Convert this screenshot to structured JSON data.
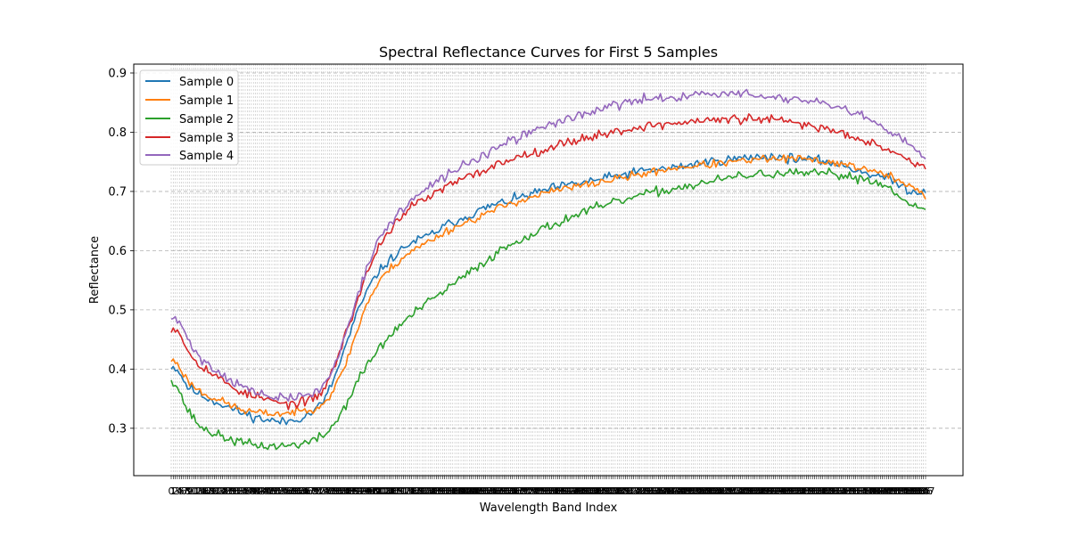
{
  "chart_data": {
    "type": "line",
    "title": "Spectral Reflectance Curves for First 5 Samples",
    "xlabel": "Wavelength Band Index",
    "ylabel": "Reflectance",
    "x_range": [
      0,
      367
    ],
    "ylim": [
      0.22,
      0.915
    ],
    "y_ticks": [
      "0.3",
      "0.4",
      "0.5",
      "0.6",
      "0.7",
      "0.8",
      "0.9"
    ],
    "y_tick_values": [
      0.3,
      0.4,
      0.5,
      0.6,
      0.7,
      0.8,
      0.9
    ],
    "x_tick_labels_dense": true,
    "x_tick_count": 368,
    "grid": true,
    "grid_style": "dashed",
    "legend_position": "upper-left",
    "series": [
      {
        "name": "Sample 0",
        "color": "#1f77b4",
        "noise": 0.007,
        "seed": 11,
        "anchors": [
          [
            0,
            0.405
          ],
          [
            3,
            0.4
          ],
          [
            8,
            0.37
          ],
          [
            15,
            0.355
          ],
          [
            25,
            0.34
          ],
          [
            35,
            0.325
          ],
          [
            45,
            0.315
          ],
          [
            55,
            0.31
          ],
          [
            65,
            0.32
          ],
          [
            70,
            0.33
          ],
          [
            75,
            0.35
          ],
          [
            80,
            0.39
          ],
          [
            85,
            0.44
          ],
          [
            90,
            0.49
          ],
          [
            95,
            0.53
          ],
          [
            100,
            0.56
          ],
          [
            105,
            0.58
          ],
          [
            115,
            0.61
          ],
          [
            125,
            0.625
          ],
          [
            135,
            0.645
          ],
          [
            145,
            0.66
          ],
          [
            155,
            0.675
          ],
          [
            165,
            0.685
          ],
          [
            175,
            0.695
          ],
          [
            185,
            0.705
          ],
          [
            200,
            0.715
          ],
          [
            215,
            0.725
          ],
          [
            230,
            0.735
          ],
          [
            245,
            0.74
          ],
          [
            260,
            0.75
          ],
          [
            275,
            0.755
          ],
          [
            290,
            0.76
          ],
          [
            305,
            0.755
          ],
          [
            320,
            0.75
          ],
          [
            330,
            0.74
          ],
          [
            340,
            0.73
          ],
          [
            350,
            0.72
          ],
          [
            360,
            0.7
          ],
          [
            367,
            0.7
          ]
        ]
      },
      {
        "name": "Sample 1",
        "color": "#ff7f0e",
        "noise": 0.006,
        "seed": 23,
        "anchors": [
          [
            0,
            0.415
          ],
          [
            3,
            0.41
          ],
          [
            8,
            0.38
          ],
          [
            15,
            0.36
          ],
          [
            25,
            0.345
          ],
          [
            35,
            0.33
          ],
          [
            45,
            0.325
          ],
          [
            55,
            0.325
          ],
          [
            65,
            0.33
          ],
          [
            70,
            0.335
          ],
          [
            75,
            0.345
          ],
          [
            80,
            0.37
          ],
          [
            85,
            0.41
          ],
          [
            90,
            0.46
          ],
          [
            95,
            0.51
          ],
          [
            100,
            0.54
          ],
          [
            105,
            0.565
          ],
          [
            115,
            0.595
          ],
          [
            125,
            0.615
          ],
          [
            135,
            0.635
          ],
          [
            145,
            0.65
          ],
          [
            155,
            0.665
          ],
          [
            165,
            0.68
          ],
          [
            175,
            0.69
          ],
          [
            185,
            0.7
          ],
          [
            200,
            0.71
          ],
          [
            215,
            0.72
          ],
          [
            230,
            0.73
          ],
          [
            245,
            0.74
          ],
          [
            260,
            0.745
          ],
          [
            275,
            0.75
          ],
          [
            290,
            0.755
          ],
          [
            305,
            0.755
          ],
          [
            320,
            0.75
          ],
          [
            330,
            0.745
          ],
          [
            340,
            0.735
          ],
          [
            350,
            0.725
          ],
          [
            360,
            0.71
          ],
          [
            367,
            0.69
          ]
        ]
      },
      {
        "name": "Sample 2",
        "color": "#2ca02c",
        "noise": 0.007,
        "seed": 37,
        "anchors": [
          [
            0,
            0.385
          ],
          [
            3,
            0.37
          ],
          [
            8,
            0.33
          ],
          [
            15,
            0.3
          ],
          [
            25,
            0.285
          ],
          [
            35,
            0.275
          ],
          [
            45,
            0.27
          ],
          [
            55,
            0.27
          ],
          [
            65,
            0.275
          ],
          [
            70,
            0.28
          ],
          [
            75,
            0.29
          ],
          [
            80,
            0.31
          ],
          [
            85,
            0.34
          ],
          [
            90,
            0.375
          ],
          [
            95,
            0.405
          ],
          [
            100,
            0.43
          ],
          [
            110,
            0.47
          ],
          [
            120,
            0.5
          ],
          [
            130,
            0.525
          ],
          [
            140,
            0.55
          ],
          [
            150,
            0.575
          ],
          [
            160,
            0.6
          ],
          [
            170,
            0.62
          ],
          [
            180,
            0.635
          ],
          [
            190,
            0.65
          ],
          [
            200,
            0.665
          ],
          [
            215,
            0.68
          ],
          [
            230,
            0.695
          ],
          [
            245,
            0.705
          ],
          [
            260,
            0.715
          ],
          [
            275,
            0.725
          ],
          [
            290,
            0.73
          ],
          [
            305,
            0.73
          ],
          [
            320,
            0.73
          ],
          [
            330,
            0.725
          ],
          [
            340,
            0.72
          ],
          [
            350,
            0.705
          ],
          [
            360,
            0.68
          ],
          [
            367,
            0.665
          ]
        ]
      },
      {
        "name": "Sample 3",
        "color": "#d62728",
        "noise": 0.007,
        "seed": 53,
        "anchors": [
          [
            0,
            0.47
          ],
          [
            4,
            0.465
          ],
          [
            8,
            0.43
          ],
          [
            15,
            0.405
          ],
          [
            25,
            0.38
          ],
          [
            35,
            0.36
          ],
          [
            45,
            0.35
          ],
          [
            55,
            0.34
          ],
          [
            65,
            0.345
          ],
          [
            70,
            0.35
          ],
          [
            75,
            0.37
          ],
          [
            80,
            0.41
          ],
          [
            85,
            0.46
          ],
          [
            90,
            0.51
          ],
          [
            95,
            0.56
          ],
          [
            100,
            0.6
          ],
          [
            105,
            0.63
          ],
          [
            115,
            0.67
          ],
          [
            125,
            0.69
          ],
          [
            135,
            0.71
          ],
          [
            145,
            0.725
          ],
          [
            155,
            0.74
          ],
          [
            165,
            0.755
          ],
          [
            175,
            0.765
          ],
          [
            185,
            0.775
          ],
          [
            200,
            0.79
          ],
          [
            215,
            0.8
          ],
          [
            230,
            0.81
          ],
          [
            245,
            0.815
          ],
          [
            260,
            0.82
          ],
          [
            275,
            0.822
          ],
          [
            290,
            0.822
          ],
          [
            305,
            0.815
          ],
          [
            320,
            0.805
          ],
          [
            330,
            0.795
          ],
          [
            340,
            0.785
          ],
          [
            350,
            0.77
          ],
          [
            360,
            0.75
          ],
          [
            367,
            0.74
          ]
        ]
      },
      {
        "name": "Sample 4",
        "color": "#9467bd",
        "noise": 0.007,
        "seed": 71,
        "anchors": [
          [
            0,
            0.485
          ],
          [
            4,
            0.48
          ],
          [
            8,
            0.45
          ],
          [
            15,
            0.415
          ],
          [
            25,
            0.39
          ],
          [
            35,
            0.37
          ],
          [
            45,
            0.355
          ],
          [
            55,
            0.35
          ],
          [
            65,
            0.355
          ],
          [
            70,
            0.36
          ],
          [
            75,
            0.375
          ],
          [
            80,
            0.41
          ],
          [
            85,
            0.46
          ],
          [
            90,
            0.52
          ],
          [
            95,
            0.57
          ],
          [
            100,
            0.61
          ],
          [
            105,
            0.64
          ],
          [
            115,
            0.68
          ],
          [
            125,
            0.705
          ],
          [
            135,
            0.73
          ],
          [
            145,
            0.75
          ],
          [
            155,
            0.765
          ],
          [
            165,
            0.785
          ],
          [
            175,
            0.8
          ],
          [
            185,
            0.815
          ],
          [
            200,
            0.83
          ],
          [
            215,
            0.845
          ],
          [
            230,
            0.855
          ],
          [
            245,
            0.86
          ],
          [
            260,
            0.865
          ],
          [
            275,
            0.865
          ],
          [
            290,
            0.86
          ],
          [
            305,
            0.855
          ],
          [
            320,
            0.845
          ],
          [
            330,
            0.835
          ],
          [
            340,
            0.82
          ],
          [
            350,
            0.8
          ],
          [
            360,
            0.775
          ],
          [
            367,
            0.755
          ]
        ]
      }
    ]
  }
}
